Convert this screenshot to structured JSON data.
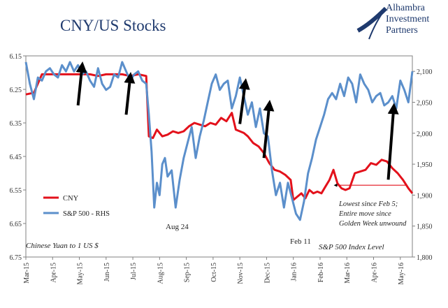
{
  "title": "CNY/US Stocks",
  "brand": {
    "line1": "Alhambra",
    "line2": "Investment",
    "line3": "Partners"
  },
  "notes": {
    "left_axis_note": "Chinese Yuan to 1 US $",
    "right_axis_note": "S&P 500 Index Level",
    "annotation_aug": "Aug 24",
    "annotation_feb": "Feb 11",
    "annotation_lowest_1": "Lowest since Feb 5;",
    "annotation_lowest_2": "Entire move since",
    "annotation_lowest_3": "Golden Week unwound"
  },
  "colors": {
    "cny": "#e3111b",
    "spx": "#5b8fcb",
    "arrow": "#000000",
    "title": "#1f3a6e",
    "axis": "#808080"
  },
  "chart_data": {
    "type": "line",
    "title": "CNY/US Stocks",
    "x_tick_labels": [
      "Mar-15",
      "Apr-15",
      "May-15",
      "Jun-15",
      "Jul-15",
      "Aug-15",
      "Sep-15",
      "Oct-15",
      "Nov-15",
      "Dec-15",
      "Jan-16",
      "Feb-16",
      "Mar-16",
      "Apr-16",
      "May-16"
    ],
    "y_left": {
      "ticks": [
        "6.15",
        "6.25",
        "6.35",
        "6.45",
        "6.55",
        "6.65",
        "6.75"
      ],
      "range": [
        6.15,
        6.75
      ],
      "inverted": true
    },
    "y_right": {
      "ticks": [
        "1,800",
        "1,850",
        "1,900",
        "1,950",
        "2,000",
        "2,050",
        "2,100"
      ],
      "range": [
        1800,
        2125
      ]
    },
    "legend": {
      "position": "bottom-left",
      "items": [
        "CNY",
        "S&P 500 - RHS"
      ]
    },
    "series": [
      {
        "name": "CNY",
        "axis": "left",
        "x": [
          0,
          0.3,
          0.6,
          0.9,
          1.2,
          1.5,
          1.8,
          2.1,
          2.4,
          2.7,
          3.0,
          3.3,
          3.6,
          3.9,
          4.2,
          4.5,
          4.6,
          4.75,
          4.9,
          5.1,
          5.3,
          5.5,
          5.7,
          5.9,
          6.1,
          6.3,
          6.5,
          6.7,
          6.9,
          7.1,
          7.3,
          7.5,
          7.7,
          7.85,
          8.0,
          8.15,
          8.3,
          8.5,
          8.7,
          8.9,
          9.1,
          9.3,
          9.5,
          9.7,
          9.9,
          10.0,
          10.15,
          10.3,
          10.45,
          10.6,
          10.75,
          10.9,
          11.05,
          11.2,
          11.35,
          11.5,
          11.65,
          11.8,
          11.95,
          12.1,
          12.3,
          12.5,
          12.7,
          12.9,
          13.1,
          13.3,
          13.5,
          13.7,
          13.9,
          14.1,
          14.3,
          14.45
        ],
        "values": [
          6.265,
          6.26,
          6.205,
          6.205,
          6.205,
          6.205,
          6.205,
          6.205,
          6.205,
          6.21,
          6.205,
          6.205,
          6.205,
          6.21,
          6.205,
          6.21,
          6.39,
          6.395,
          6.37,
          6.39,
          6.385,
          6.375,
          6.38,
          6.375,
          6.36,
          6.35,
          6.355,
          6.36,
          6.35,
          6.355,
          6.335,
          6.345,
          6.32,
          6.37,
          6.375,
          6.38,
          6.39,
          6.41,
          6.42,
          6.44,
          6.47,
          6.49,
          6.495,
          6.505,
          6.52,
          6.58,
          6.57,
          6.56,
          6.575,
          6.55,
          6.56,
          6.555,
          6.56,
          6.54,
          6.52,
          6.49,
          6.53,
          6.545,
          6.55,
          6.545,
          6.5,
          6.495,
          6.49,
          6.47,
          6.475,
          6.46,
          6.465,
          6.485,
          6.5,
          6.52,
          6.545,
          6.56
        ]
      },
      {
        "name": "S&P 500 - RHS",
        "axis": "right",
        "x": [
          0,
          0.15,
          0.3,
          0.45,
          0.6,
          0.75,
          0.9,
          1.05,
          1.2,
          1.35,
          1.5,
          1.65,
          1.8,
          1.95,
          2.1,
          2.25,
          2.4,
          2.55,
          2.7,
          2.85,
          3.0,
          3.15,
          3.3,
          3.45,
          3.6,
          3.75,
          3.9,
          4.05,
          4.2,
          4.35,
          4.5,
          4.6,
          4.7,
          4.8,
          4.9,
          5.0,
          5.1,
          5.2,
          5.3,
          5.45,
          5.6,
          5.75,
          5.9,
          6.05,
          6.2,
          6.35,
          6.5,
          6.65,
          6.8,
          6.95,
          7.1,
          7.25,
          7.4,
          7.55,
          7.7,
          7.85,
          8.0,
          8.15,
          8.3,
          8.45,
          8.6,
          8.75,
          8.9,
          9.05,
          9.2,
          9.35,
          9.5,
          9.65,
          9.8,
          9.95,
          10.1,
          10.25,
          10.4,
          10.55,
          10.7,
          10.85,
          11.0,
          11.15,
          11.3,
          11.45,
          11.6,
          11.75,
          11.9,
          12.05,
          12.2,
          12.35,
          12.5,
          12.65,
          12.8,
          12.95,
          13.1,
          13.25,
          13.4,
          13.55,
          13.7,
          13.85,
          14.0,
          14.15,
          14.3,
          14.45
        ],
        "values": [
          2115,
          2080,
          2055,
          2090,
          2085,
          2100,
          2105,
          2095,
          2090,
          2110,
          2100,
          2115,
          2100,
          2110,
          2095,
          2100,
          2085,
          2075,
          2105,
          2080,
          2070,
          2075,
          2095,
          2090,
          2115,
          2100,
          2085,
          2095,
          2100,
          2085,
          2080,
          2030,
          1970,
          1880,
          1920,
          1900,
          1950,
          1960,
          1930,
          1940,
          1880,
          1925,
          1960,
          1985,
          2010,
          1960,
          1995,
          2020,
          2050,
          2080,
          2095,
          2070,
          2080,
          2085,
          2040,
          2060,
          2090,
          2060,
          2030,
          2050,
          2010,
          2040,
          2000,
          1995,
          1940,
          1900,
          1920,
          1880,
          1920,
          1895,
          1870,
          1860,
          1890,
          1935,
          1960,
          1990,
          2010,
          2030,
          2055,
          2065,
          2055,
          2080,
          2060,
          2090,
          2080,
          2050,
          2095,
          2080,
          2070,
          2050,
          2060,
          2065,
          2045,
          2050,
          2060,
          2040,
          2085,
          2070,
          2050,
          2100
        ]
      }
    ],
    "arrows": [
      {
        "x1": 1.95,
        "y1": 2045,
        "x2": 2.1,
        "y2": 2107
      },
      {
        "x1": 3.75,
        "y1": 2030,
        "x2": 3.9,
        "y2": 2090
      },
      {
        "x1": 8.0,
        "y1": 2015,
        "x2": 8.2,
        "y2": 2080
      },
      {
        "x1": 8.9,
        "y1": 1960,
        "x2": 9.1,
        "y2": 2045
      },
      {
        "x1": 13.55,
        "y1": 1925,
        "x2": 13.75,
        "y2": 2040
      }
    ]
  }
}
